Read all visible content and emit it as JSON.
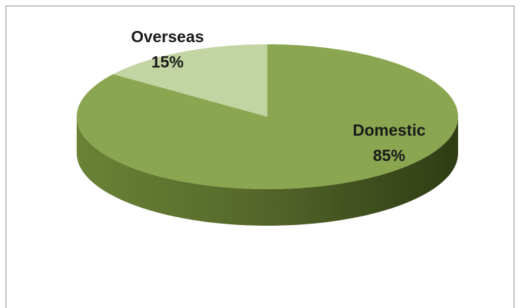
{
  "chart_data": {
    "type": "pie",
    "style": "3d",
    "categories": [
      "Domestic",
      "Overseas"
    ],
    "values": [
      85,
      15
    ],
    "unit": "%",
    "data_labels": [
      "85%",
      "15%"
    ],
    "colors": {
      "Domestic": "#8aa650",
      "Overseas": "#c2d4a2"
    },
    "title": "",
    "legend": "none"
  }
}
